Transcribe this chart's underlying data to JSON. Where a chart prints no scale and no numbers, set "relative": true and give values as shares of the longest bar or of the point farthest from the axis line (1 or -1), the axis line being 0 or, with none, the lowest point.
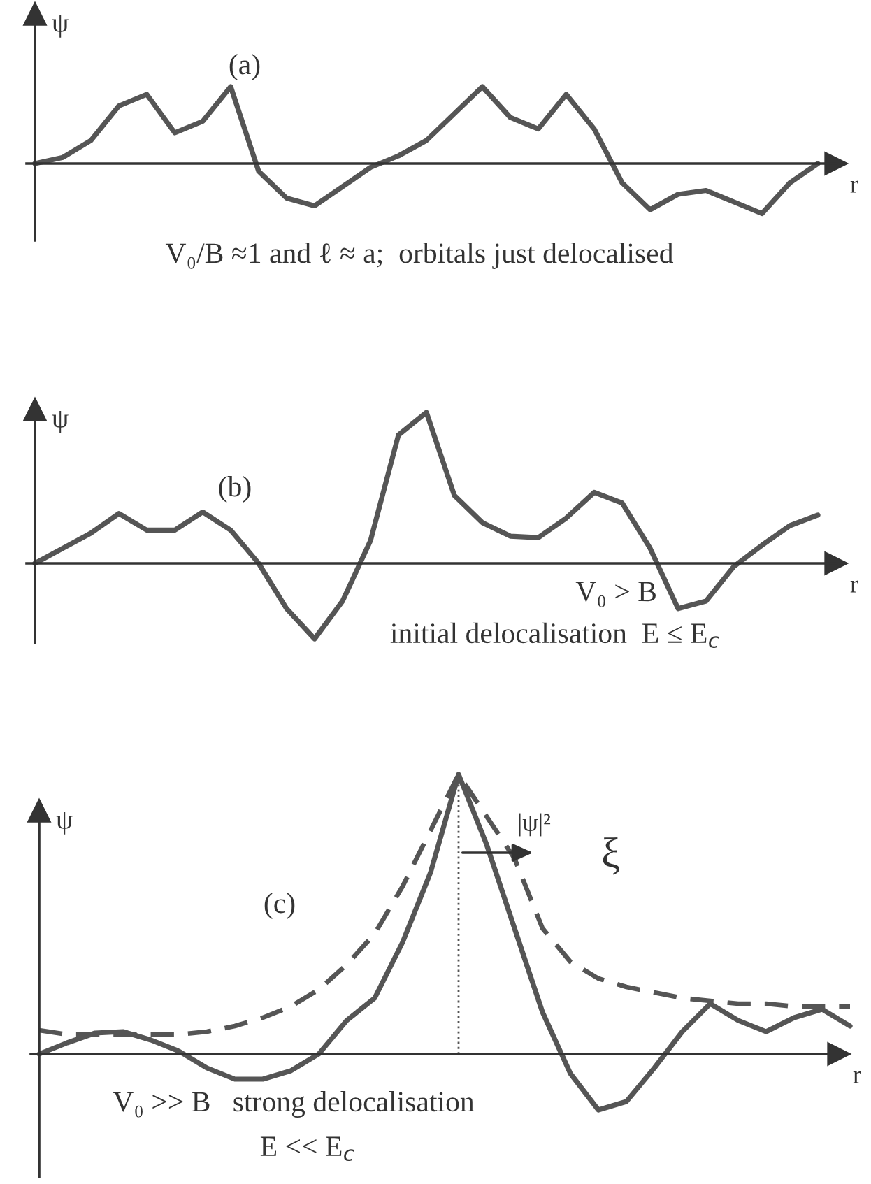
{
  "chart_data": [
    {
      "type": "line",
      "title": "(a)",
      "xlabel": "r",
      "ylabel": "ψ",
      "relative": true,
      "categories": [
        null,
        null,
        null,
        null,
        null,
        null,
        null,
        null,
        null,
        null,
        null,
        null,
        null,
        null,
        null,
        null,
        null,
        null,
        null,
        null,
        null,
        null,
        null,
        null,
        null,
        null,
        null,
        null,
        null
      ],
      "series": [
        {
          "color": "#555555",
          "line_style": "solid",
          "values": [
            0,
            0.08,
            0.3,
            0.75,
            0.9,
            0.4,
            0.55,
            1.0,
            -0.1,
            -0.45,
            -0.55,
            -0.3,
            -0.05,
            0.1,
            0.3,
            0.65,
            1.0,
            0.6,
            0.45,
            0.9,
            0.45,
            -0.25,
            -0.6,
            -0.4,
            -0.35,
            -0.5,
            -0.65,
            -0.25,
            0
          ]
        }
      ],
      "annotations": [
        "V₀/B ≈1 and ℓ ≈ a;  orbitals just delocalised"
      ]
    },
    {
      "type": "line",
      "title": "(b)",
      "xlabel": "r",
      "ylabel": "ψ",
      "relative": true,
      "categories": [
        null,
        null,
        null,
        null,
        null,
        null,
        null,
        null,
        null,
        null,
        null,
        null,
        null,
        null,
        null,
        null,
        null,
        null,
        null,
        null,
        null,
        null,
        null,
        null,
        null,
        null,
        null,
        null,
        null
      ],
      "series": [
        {
          "color": "#555555",
          "line_style": "solid",
          "values": [
            0,
            0.1,
            0.2,
            0.33,
            0.22,
            0.22,
            0.34,
            0.22,
            0,
            -0.3,
            -0.5,
            -0.25,
            0.15,
            0.85,
            1.0,
            0.45,
            0.27,
            0.18,
            0.17,
            0.3,
            0.47,
            0.4,
            0.1,
            -0.3,
            -0.25,
            -0.02,
            0.12,
            0.25,
            0.32
          ]
        }
      ],
      "annotations": [
        "V₀ > B",
        "initial delocalisation  E ≤ E$_{c}$"
      ]
    },
    {
      "type": "line",
      "title": "(c)",
      "xlabel": "r",
      "ylabel": "ψ",
      "relative": true,
      "categories": [
        null,
        null,
        null,
        null,
        null,
        null,
        null,
        null,
        null,
        null,
        null,
        null,
        null,
        null,
        null,
        null,
        null,
        null,
        null,
        null,
        null,
        null,
        null,
        null,
        null,
        null,
        null,
        null,
        null,
        null
      ],
      "series": [
        {
          "color": "#555555",
          "line_style": "solid",
          "values": [
            0,
            0.04,
            0.075,
            0.08,
            0.05,
            0.01,
            -0.05,
            -0.09,
            -0.09,
            -0.06,
            0,
            0.12,
            0.2,
            0.4,
            0.65,
            1.0,
            0.75,
            0.45,
            0.15,
            -0.07,
            -0.2,
            -0.17,
            -0.05,
            0.08,
            0.18,
            0.12,
            0.08,
            0.13,
            0.16,
            0.1
          ]
        },
        {
          "name": "|ψ|²",
          "color": "#555555",
          "line_style": "dashed",
          "values": [
            0.085,
            0.07,
            0.07,
            0.07,
            0.07,
            0.07,
            0.08,
            0.1,
            0.13,
            0.17,
            0.23,
            0.32,
            0.43,
            0.6,
            0.8,
            1.0,
            0.85,
            0.7,
            0.45,
            0.33,
            0.27,
            0.24,
            0.22,
            0.2,
            0.19,
            0.18,
            0.18,
            0.17,
            0.17,
            0.17
          ]
        }
      ],
      "annotations": [
        "ξ",
        "V₀ >> B   strong delocalisation",
        "E << E$_{c}$"
      ]
    }
  ]
}
